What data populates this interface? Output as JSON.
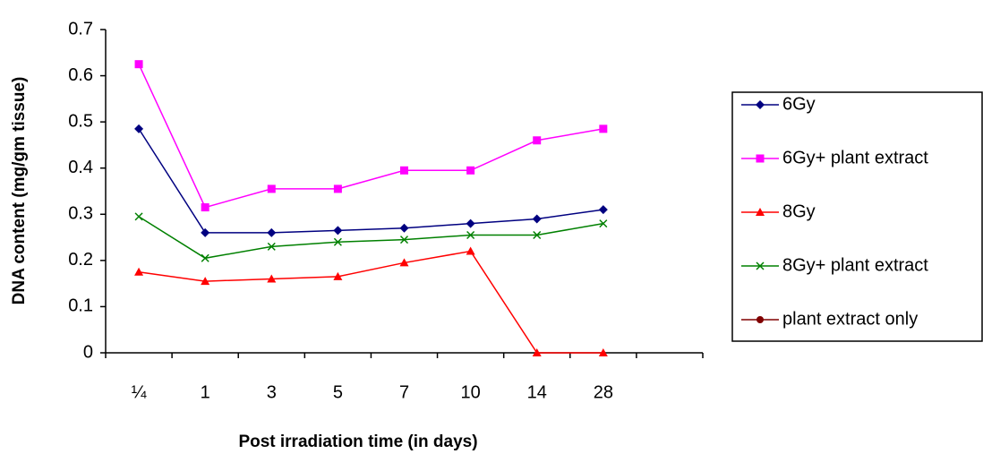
{
  "chart_data": {
    "type": "line",
    "x_label": "Post irradiation time (in days)",
    "y_label": "DNA content (mg/gm tissue)",
    "categories": [
      "¼",
      "1",
      "3",
      "5",
      "7",
      "10",
      "14",
      "28",
      null
    ],
    "series": [
      {
        "name": "6Gy",
        "color": "#000080",
        "marker": "diamond",
        "values": [
          0.485,
          0.26,
          0.26,
          0.265,
          0.27,
          0.28,
          0.29,
          0.31,
          null
        ]
      },
      {
        "name": "6Gy+ plant extract",
        "color": "#ff00ff",
        "marker": "square",
        "values": [
          0.625,
          0.315,
          0.355,
          0.355,
          0.395,
          0.395,
          0.46,
          0.485,
          null
        ]
      },
      {
        "name": "8Gy",
        "color": "#ff0000",
        "marker": "triangle",
        "values": [
          0.175,
          0.155,
          0.16,
          0.165,
          0.195,
          0.22,
          0,
          0,
          null
        ]
      },
      {
        "name": "8Gy+ plant extract",
        "color": "#008000",
        "marker": "x",
        "values": [
          0.295,
          0.205,
          0.23,
          0.24,
          0.245,
          0.255,
          0.255,
          0.28,
          null
        ]
      },
      {
        "name": "plant extract only",
        "color": "#800000",
        "marker": "star",
        "values": [
          null,
          null,
          null,
          null,
          null,
          null,
          null,
          null,
          null
        ]
      }
    ],
    "ylim": [
      0,
      0.7
    ],
    "yticks": [
      0,
      0.1,
      0.2,
      0.3,
      0.4,
      0.5,
      0.6,
      0.7
    ],
    "legend": "right"
  }
}
